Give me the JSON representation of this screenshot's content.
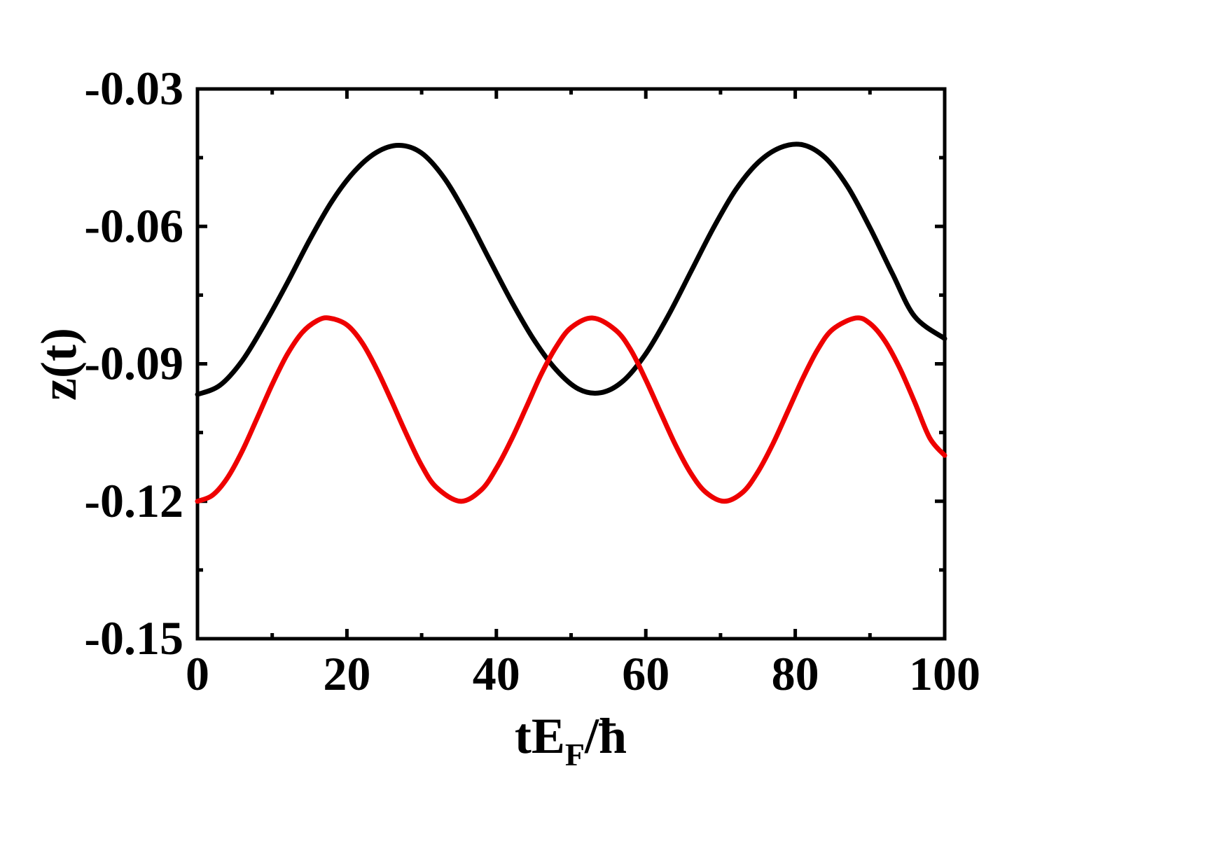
{
  "chart_data": {
    "type": "line",
    "title": "",
    "xlabel": {
      "main": "tE",
      "sub": "F",
      "tail": "/ħ"
    },
    "ylabel": "z(t)",
    "xlim": [
      0,
      100
    ],
    "ylim": [
      -0.15,
      -0.03
    ],
    "x_ticks": [
      0,
      20,
      40,
      60,
      80,
      100
    ],
    "x_tick_labels": [
      "0",
      "20",
      "40",
      "60",
      "80",
      "100"
    ],
    "y_ticks": [
      -0.15,
      -0.12,
      -0.09,
      -0.06,
      -0.03
    ],
    "y_tick_labels": [
      "-0.15",
      "-0.12",
      "-0.09",
      "-0.06",
      "-0.03"
    ],
    "grid": false,
    "legend": "none",
    "series": [
      {
        "color": "#000000",
        "x": [
          0,
          3,
          6,
          9,
          12,
          15,
          18,
          21,
          24,
          27,
          30,
          33,
          36,
          39,
          42,
          45,
          48,
          51,
          54,
          57,
          60,
          63,
          66,
          69,
          72,
          75,
          78,
          81,
          84,
          87,
          90,
          93,
          96,
          100
        ],
        "y": [
          -0.0967,
          -0.0947,
          -0.0893,
          -0.0813,
          -0.0724,
          -0.063,
          -0.0545,
          -0.048,
          -0.0438,
          -0.0423,
          -0.044,
          -0.0494,
          -0.0576,
          -0.067,
          -0.0763,
          -0.0847,
          -0.0913,
          -0.0955,
          -0.0963,
          -0.0937,
          -0.0878,
          -0.0795,
          -0.07,
          -0.0605,
          -0.0521,
          -0.0461,
          -0.0428,
          -0.0422,
          -0.045,
          -0.0513,
          -0.0603,
          -0.0703,
          -0.0797,
          -0.0845
        ]
      },
      {
        "color": "#ee0000",
        "x": [
          0,
          2,
          4,
          6,
          8,
          10,
          12,
          14,
          16,
          17.6,
          20,
          22,
          24,
          26,
          28,
          30,
          32,
          35.2,
          38,
          40,
          42,
          44,
          46,
          48,
          50,
          52.9,
          56,
          58,
          60,
          62,
          64,
          66,
          68,
          70.5,
          73,
          75,
          77,
          79,
          81,
          83,
          85,
          88.1,
          90,
          92,
          94,
          96,
          98,
          100
        ],
        "y": [
          -0.12,
          -0.1187,
          -0.1149,
          -0.109,
          -0.1018,
          -0.0945,
          -0.088,
          -0.0832,
          -0.0806,
          -0.08,
          -0.0815,
          -0.0853,
          -0.0912,
          -0.0982,
          -0.1055,
          -0.1122,
          -0.117,
          -0.12,
          -0.1175,
          -0.1128,
          -0.1066,
          -0.0995,
          -0.0923,
          -0.0863,
          -0.0821,
          -0.08,
          -0.0827,
          -0.087,
          -0.0935,
          -0.1007,
          -0.1078,
          -0.1138,
          -0.118,
          -0.12,
          -0.118,
          -0.1136,
          -0.1075,
          -0.1004,
          -0.0932,
          -0.0869,
          -0.0825,
          -0.08,
          -0.0812,
          -0.085,
          -0.091,
          -0.0984,
          -0.1062,
          -0.11
        ]
      }
    ]
  }
}
